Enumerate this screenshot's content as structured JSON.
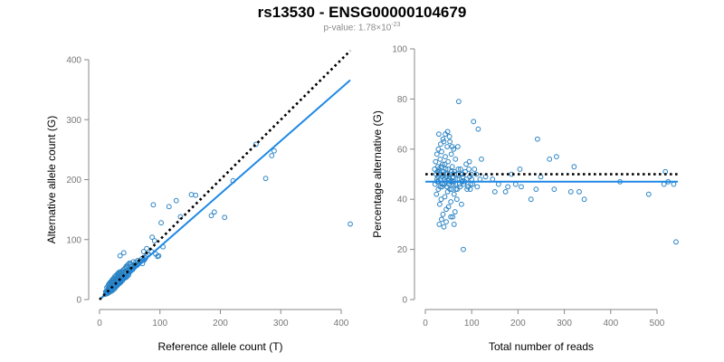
{
  "header": {
    "title": "rs13530 - ENSG00000104679",
    "pvalue_prefix": "p-value: 1.78×10",
    "pvalue_exponent": "-23"
  },
  "colors": {
    "points": "#2a83c4",
    "fit": "#1e88e5",
    "reference": "#000000"
  },
  "chart_data": [
    {
      "type": "scatter",
      "xlabel": "Reference allele count (T)",
      "ylabel": "Alternative allele count (G)",
      "xlim": [
        0,
        420
      ],
      "ylim": [
        0,
        420
      ],
      "xticks": [
        0,
        100,
        200,
        300,
        400
      ],
      "yticks": [
        0,
        100,
        200,
        300,
        400
      ],
      "reference_line": {
        "x1": 0,
        "y1": 0,
        "x2": 415,
        "y2": 415,
        "style": "dotted"
      },
      "fit_line": {
        "x1": 0,
        "y1": 0,
        "x2": 415,
        "y2": 366,
        "style": "solid"
      },
      "points": [
        [
          415,
          126
        ],
        [
          285,
          240
        ],
        [
          289,
          248
        ],
        [
          259,
          259
        ],
        [
          275,
          202
        ],
        [
          221,
          198
        ],
        [
          207,
          137
        ],
        [
          185,
          140
        ],
        [
          190,
          146
        ],
        [
          152,
          175
        ],
        [
          159,
          174
        ],
        [
          127,
          165
        ],
        [
          134,
          138
        ],
        [
          115,
          155
        ],
        [
          89,
          158
        ],
        [
          102,
          128
        ],
        [
          91,
          98
        ],
        [
          87,
          104
        ],
        [
          105,
          88
        ],
        [
          86,
          80
        ],
        [
          93,
          76
        ],
        [
          96,
          72
        ],
        [
          98,
          73
        ],
        [
          78,
          85
        ],
        [
          73,
          80
        ],
        [
          63,
          65
        ],
        [
          56,
          63
        ],
        [
          52,
          59
        ],
        [
          48,
          50
        ],
        [
          45,
          53
        ],
        [
          40,
          78
        ],
        [
          34,
          73
        ],
        [
          40,
          45
        ],
        [
          38,
          40
        ],
        [
          35,
          38
        ],
        [
          30,
          35
        ],
        [
          28,
          32
        ],
        [
          25,
          30
        ],
        [
          22,
          28
        ],
        [
          20,
          26
        ],
        [
          18,
          22
        ],
        [
          16,
          20
        ],
        [
          15,
          18
        ],
        [
          14,
          17
        ],
        [
          12,
          14
        ],
        [
          11,
          12
        ],
        [
          10,
          13
        ],
        [
          13,
          15
        ],
        [
          14,
          12
        ],
        [
          17,
          19
        ],
        [
          18,
          17
        ],
        [
          19,
          23
        ],
        [
          21,
          20
        ],
        [
          22,
          25
        ],
        [
          23,
          22
        ],
        [
          24,
          27
        ],
        [
          26,
          24
        ],
        [
          27,
          29
        ],
        [
          28,
          26
        ],
        [
          29,
          31
        ],
        [
          31,
          28
        ],
        [
          32,
          34
        ],
        [
          33,
          30
        ],
        [
          34,
          36
        ],
        [
          36,
          33
        ],
        [
          37,
          39
        ],
        [
          38,
          35
        ],
        [
          39,
          41
        ],
        [
          41,
          38
        ],
        [
          42,
          45
        ],
        [
          43,
          40
        ],
        [
          44,
          47
        ],
        [
          46,
          42
        ],
        [
          47,
          49
        ],
        [
          49,
          45
        ],
        [
          50,
          52
        ],
        [
          51,
          47
        ],
        [
          53,
          55
        ],
        [
          55,
          50
        ],
        [
          57,
          58
        ],
        [
          58,
          54
        ],
        [
          60,
          62
        ],
        [
          62,
          57
        ],
        [
          65,
          60
        ],
        [
          67,
          64
        ],
        [
          70,
          68
        ],
        [
          72,
          66
        ],
        [
          75,
          70
        ],
        [
          77,
          73
        ],
        [
          80,
          75
        ],
        [
          20,
          14
        ],
        [
          22,
          16
        ],
        [
          25,
          18
        ],
        [
          27,
          21
        ],
        [
          30,
          24
        ],
        [
          33,
          27
        ],
        [
          35,
          30
        ],
        [
          38,
          32
        ],
        [
          40,
          35
        ],
        [
          42,
          36
        ],
        [
          44,
          37
        ],
        [
          46,
          39
        ],
        [
          48,
          41
        ],
        [
          15,
          25
        ],
        [
          17,
          28
        ],
        [
          19,
          30
        ],
        [
          21,
          33
        ],
        [
          23,
          35
        ],
        [
          25,
          38
        ],
        [
          27,
          40
        ],
        [
          29,
          42
        ],
        [
          31,
          44
        ],
        [
          33,
          46
        ],
        [
          13,
          10
        ],
        [
          16,
          12
        ],
        [
          18,
          15
        ],
        [
          20,
          17
        ],
        [
          23,
          19
        ],
        [
          25,
          21
        ],
        [
          28,
          23
        ],
        [
          30,
          25
        ],
        [
          32,
          27
        ],
        [
          35,
          29
        ],
        [
          37,
          31
        ],
        [
          12,
          20
        ],
        [
          14,
          22
        ],
        [
          16,
          24
        ],
        [
          18,
          26
        ],
        [
          20,
          29
        ],
        [
          22,
          31
        ],
        [
          24,
          33
        ],
        [
          26,
          35
        ],
        [
          28,
          37
        ],
        [
          30,
          39
        ],
        [
          32,
          42
        ],
        [
          34,
          44
        ],
        [
          36,
          46
        ],
        [
          38,
          48
        ],
        [
          40,
          50
        ],
        [
          42,
          52
        ],
        [
          44,
          55
        ],
        [
          46,
          57
        ],
        [
          48,
          59
        ],
        [
          50,
          61
        ],
        [
          10,
          9
        ],
        [
          12,
          11
        ],
        [
          15,
          13
        ],
        [
          18,
          16
        ],
        [
          21,
          18
        ],
        [
          24,
          20
        ],
        [
          26,
          22
        ],
        [
          29,
          24
        ],
        [
          31,
          26
        ],
        [
          34,
          28
        ],
        [
          52,
          50
        ],
        [
          55,
          52
        ],
        [
          58,
          55
        ],
        [
          61,
          57
        ],
        [
          64,
          60
        ],
        [
          66,
          62
        ],
        [
          69,
          64
        ],
        [
          71,
          60
        ],
        [
          74,
          66
        ],
        [
          76,
          69
        ]
      ]
    },
    {
      "type": "scatter",
      "xlabel": "Total number of reads",
      "ylabel": "Percentage alternative (G)",
      "xlim": [
        0,
        545
      ],
      "ylim": [
        0,
        100
      ],
      "xticks": [
        0,
        100,
        200,
        300,
        400,
        500
      ],
      "yticks": [
        0,
        20,
        40,
        60,
        80,
        100
      ],
      "reference_line": {
        "y": 50,
        "style": "dotted"
      },
      "fit_line": {
        "y": 47,
        "style": "solid"
      },
      "points": [
        [
          541,
          23
        ],
        [
          518,
          51
        ],
        [
          524,
          47
        ],
        [
          536,
          46
        ],
        [
          515,
          46
        ],
        [
          482,
          42
        ],
        [
          420,
          47
        ],
        [
          343,
          40
        ],
        [
          332,
          43
        ],
        [
          321,
          53
        ],
        [
          314,
          43
        ],
        [
          283,
          57
        ],
        [
          278,
          44
        ],
        [
          268,
          56
        ],
        [
          249,
          49
        ],
        [
          242,
          64
        ],
        [
          239,
          44
        ],
        [
          228,
          40
        ],
        [
          207,
          45
        ],
        [
          204,
          52
        ],
        [
          195,
          46
        ],
        [
          186,
          50
        ],
        [
          178,
          45
        ],
        [
          173,
          43
        ],
        [
          158,
          46
        ],
        [
          150,
          43
        ],
        [
          145,
          48
        ],
        [
          130,
          49
        ],
        [
          121,
          56
        ],
        [
          118,
          48
        ],
        [
          114,
          68
        ],
        [
          112,
          45
        ],
        [
          110,
          50
        ],
        [
          106,
          52
        ],
        [
          104,
          71
        ],
        [
          102,
          46
        ],
        [
          100,
          48
        ],
        [
          97,
          44
        ],
        [
          95,
          55
        ],
        [
          90,
          44
        ],
        [
          88,
          54
        ],
        [
          85,
          47
        ],
        [
          82,
          20
        ],
        [
          80,
          50
        ],
        [
          78,
          38
        ],
        [
          76,
          52
        ],
        [
          74,
          46
        ],
        [
          72,
          79
        ],
        [
          70,
          61
        ],
        [
          69,
          48
        ],
        [
          68,
          40
        ],
        [
          66,
          44
        ],
        [
          65,
          56
        ],
        [
          64,
          35
        ],
        [
          63,
          50
        ],
        [
          62,
          42
        ],
        [
          61,
          60
        ],
        [
          60,
          46
        ],
        [
          59,
          33
        ],
        [
          58,
          53
        ],
        [
          57,
          47
        ],
        [
          56,
          58
        ],
        [
          55,
          39
        ],
        [
          54,
          50
        ],
        [
          53,
          44
        ],
        [
          52,
          65
        ],
        [
          51,
          48
        ],
        [
          50,
          37
        ],
        [
          49,
          55
        ],
        [
          48,
          43
        ],
        [
          47,
          61
        ],
        [
          46,
          49
        ],
        [
          45,
          36
        ],
        [
          44,
          52
        ],
        [
          43,
          57
        ],
        [
          42,
          41
        ],
        [
          41,
          46
        ],
        [
          40,
          63
        ],
        [
          39,
          50
        ],
        [
          38,
          34
        ],
        [
          37,
          54
        ],
        [
          36,
          45
        ],
        [
          35,
          59
        ],
        [
          34,
          40
        ],
        [
          33,
          48
        ],
        [
          32,
          56
        ],
        [
          31,
          38
        ],
        [
          30,
          51
        ],
        [
          29,
          66
        ],
        [
          28,
          44
        ],
        [
          27,
          53
        ],
        [
          26,
          47
        ],
        [
          25,
          58
        ],
        [
          24,
          42
        ],
        [
          23,
          50
        ],
        [
          22,
          55
        ],
        [
          21,
          46
        ],
        [
          20,
          52
        ],
        [
          30,
          30
        ],
        [
          35,
          32
        ],
        [
          40,
          29
        ],
        [
          45,
          31
        ],
        [
          55,
          33
        ],
        [
          62,
          30
        ],
        [
          28,
          60
        ],
        [
          33,
          62
        ],
        [
          38,
          64
        ],
        [
          43,
          66
        ],
        [
          48,
          67
        ],
        [
          53,
          63
        ],
        [
          58,
          61
        ],
        [
          25,
          48
        ],
        [
          26,
          51
        ],
        [
          27,
          49
        ],
        [
          28,
          47
        ],
        [
          29,
          52
        ],
        [
          31,
          50
        ],
        [
          32,
          45
        ],
        [
          34,
          53
        ],
        [
          36,
          49
        ],
        [
          37,
          46
        ],
        [
          39,
          51
        ],
        [
          41,
          48
        ],
        [
          42,
          54
        ],
        [
          44,
          47
        ],
        [
          46,
          50
        ],
        [
          47,
          45
        ],
        [
          49,
          52
        ],
        [
          51,
          46
        ],
        [
          52,
          49
        ],
        [
          54,
          47
        ],
        [
          56,
          51
        ],
        [
          57,
          44
        ],
        [
          59,
          49
        ],
        [
          61,
          47
        ],
        [
          63,
          51
        ],
        [
          65,
          46
        ],
        [
          67,
          50
        ],
        [
          69,
          44
        ],
        [
          71,
          52
        ],
        [
          73,
          48
        ],
        [
          75,
          45
        ],
        [
          77,
          50
        ],
        [
          79,
          47
        ],
        [
          81,
          49
        ],
        [
          83,
          46
        ],
        [
          86,
          51
        ],
        [
          89,
          48
        ],
        [
          92,
          45
        ],
        [
          94,
          52
        ],
        [
          96,
          49
        ],
        [
          98,
          46
        ],
        [
          99,
          50
        ]
      ]
    }
  ]
}
